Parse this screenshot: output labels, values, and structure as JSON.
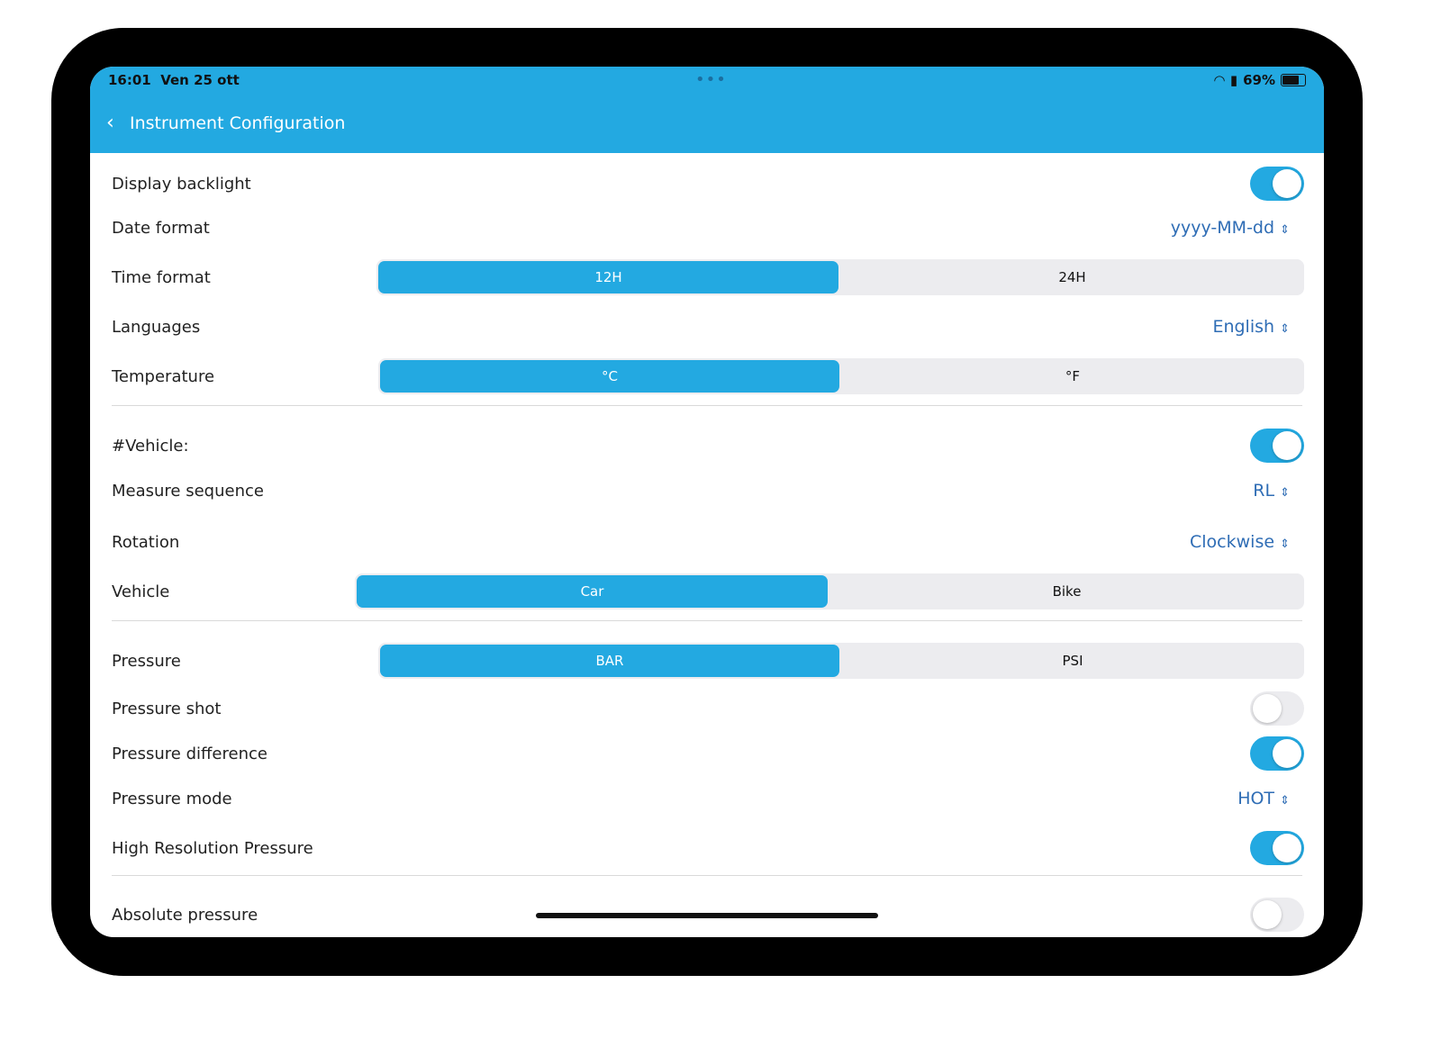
{
  "status": {
    "time": "16:01",
    "date": "Ven 25 ott",
    "battery": "69%",
    "battery_level": 0.69,
    "icons": [
      "wifi-icon",
      "lock-icon",
      "battery-icon"
    ]
  },
  "header": {
    "title": "Instrument Configuration",
    "back_icon": "chevron-left-icon"
  },
  "colors": {
    "accent": "#23a9e1",
    "value": "#2f6db5"
  },
  "rows": {
    "backlight": {
      "label": "Display backlight",
      "on": true
    },
    "date": {
      "label": "Date format",
      "value": "yyyy-MM-dd"
    },
    "time": {
      "label": "Time format",
      "options": [
        "12H",
        "24H"
      ],
      "selected": "12H"
    },
    "lang": {
      "label": "Languages",
      "value": "English"
    },
    "temp": {
      "label": "Temperature",
      "options": [
        "°C",
        "°F"
      ],
      "selected": "°C"
    },
    "vehicle_num": {
      "label": "#Vehicle:",
      "on": true
    },
    "measure": {
      "label": "Measure sequence",
      "value": "RL"
    },
    "rotation": {
      "label": "Rotation",
      "value": "Clockwise"
    },
    "vehicle": {
      "label": "Vehicle",
      "options": [
        "Car",
        "Bike"
      ],
      "selected": "Car"
    },
    "pressure": {
      "label": "Pressure",
      "options": [
        "BAR",
        "PSI"
      ],
      "selected": "BAR"
    },
    "shot": {
      "label": "Pressure shot",
      "on": false
    },
    "diff": {
      "label": "Pressure difference",
      "on": true
    },
    "mode": {
      "label": "Pressure mode",
      "value": "HOT"
    },
    "hires": {
      "label": "High Resolution Pressure",
      "on": true
    },
    "abs": {
      "label": "Absolute pressure",
      "on": false
    }
  },
  "picker_icon": "⌃⌄"
}
